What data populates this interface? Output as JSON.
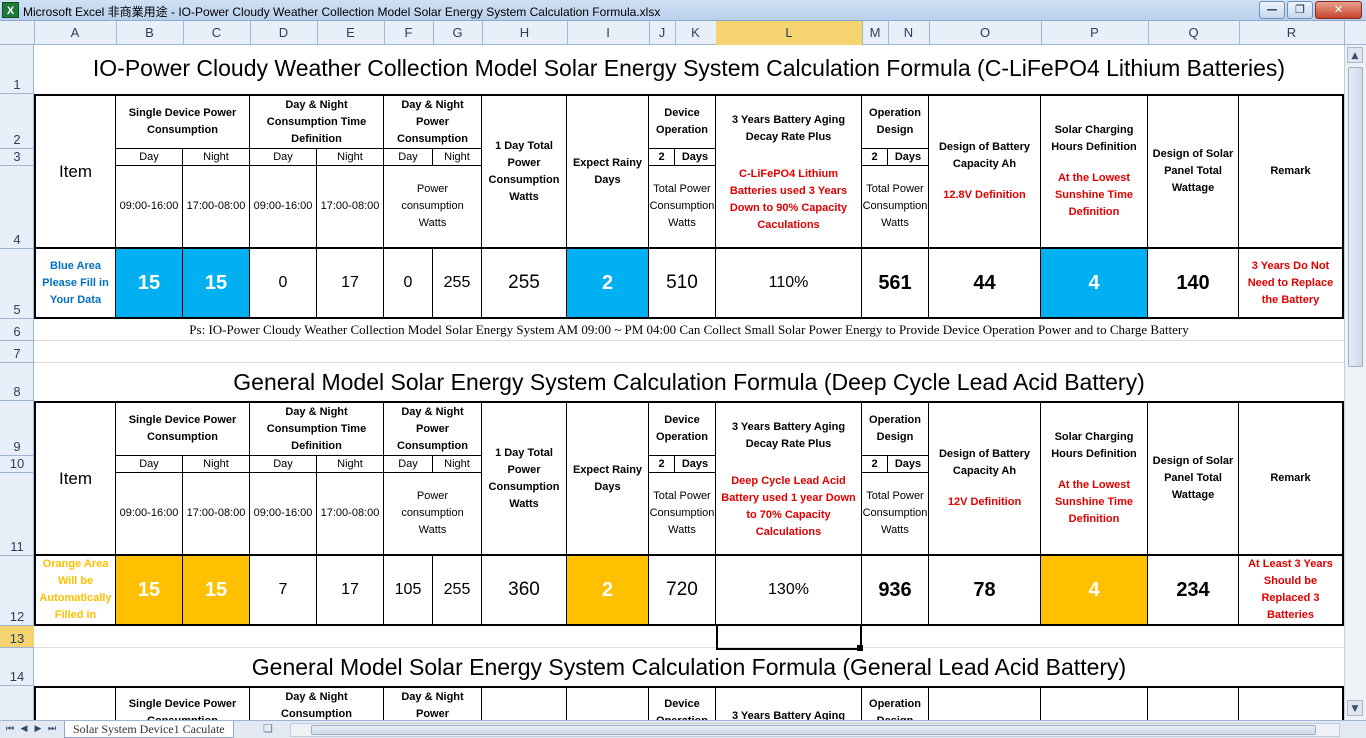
{
  "window": {
    "title": "Microsoft Excel 非商業用途 - IO-Power Cloudy Weather Collection Model Solar Energy System Calculation Formula.xlsx",
    "app_icon": "X",
    "controls": {
      "minimize": "—",
      "restore": "❐",
      "close": "✕"
    }
  },
  "columns": [
    "A",
    "B",
    "C",
    "D",
    "E",
    "F",
    "G",
    "H",
    "I",
    "J",
    "K",
    "L",
    "M",
    "N",
    "O",
    "P",
    "Q",
    "R"
  ],
  "selected_column": "L",
  "rows": [
    "1",
    "2",
    "3",
    "4",
    "5",
    "6",
    "7",
    "8",
    "9",
    "10",
    "11",
    "12",
    "13",
    "14"
  ],
  "selected_row": "13",
  "sections": {
    "lithium": {
      "title": "IO-Power Cloudy Weather Collection Model Solar Energy System Calculation Formula (C-LiFePO4 Lithium Batteries)",
      "battery_heading": "3 Years Battery Aging Decay Rate Plus",
      "battery_note": "C-LiFePO4 Lithium Batteries used 3 Years Down to 90% Capacity Caculations",
      "capacity_note": "12.8V Definition",
      "fill_note": "Blue Area Please Fill in Your Data",
      "remark": "3 Years Do Not Need to Replace the Battery",
      "values": {
        "day_power": "15",
        "night_power": "15",
        "day_hours": "0",
        "night_hours": "17",
        "day_consumption": "0",
        "night_consumption": "255",
        "total_consumption": "255",
        "rainy_days": "2",
        "device_operation": "510",
        "decay_rate": "110%",
        "operation_design": "561",
        "battery_capacity": "44",
        "charging_hours": "4",
        "panel_wattage": "140"
      },
      "footnote": "Ps: IO-Power Cloudy Weather Collection Model Solar Energy System AM 09:00 ~ PM 04:00 Can Collect Small Solar Power Energy to Provide Device Operation Power and to Charge Battery"
    },
    "deep_cycle": {
      "title": "General Model Solar Energy System Calculation Formula (Deep Cycle Lead Acid Battery)",
      "battery_heading": "3 Years Battery Aging Decay Rate Plus",
      "battery_note": "Deep Cycle Lead Acid Battery used 1 year Down to 70% Capacity Calculations",
      "capacity_note": "12V Definition",
      "fill_note": "Orange Area Will be Automatically Filled in",
      "remark": "At Least 3 Years Should be Replaced 3 Batteries",
      "values": {
        "day_power": "15",
        "night_power": "15",
        "day_hours": "7",
        "night_hours": "17",
        "day_consumption": "105",
        "night_consumption": "255",
        "total_consumption": "360",
        "rainy_days": "2",
        "device_operation": "720",
        "decay_rate": "130%",
        "operation_design": "936",
        "battery_capacity": "78",
        "charging_hours": "4",
        "panel_wattage": "234"
      }
    },
    "general": {
      "title": "General Model Solar Energy System Calculation Formula (General Lead Acid Battery)",
      "battery_heading": "3 Years Battery Aging"
    }
  },
  "headers": {
    "item": "Item",
    "single_device": "Single Device Power Consumption",
    "day_night_time": "Day & Night Consumption Time Definition",
    "day_night_time_partial": "Day & Night Consumption",
    "day_night_power": "Day & Night Power Consumption",
    "day_night_power_partial": "Day & Night Power",
    "one_day_total": "1 Day Total Power Consumption Watts",
    "expect_rainy": "Expect Rainy Days",
    "device_operation": "Device Operation",
    "operation_design": "Operation Design",
    "battery_capacity": "Design of Battery Capacity Ah",
    "solar_charging": "Solar Charging Hours Definition",
    "solar_charging_note": "At the Lowest Sunshine Time Definition",
    "panel_wattage": "Design of Solar Panel Total Wattage",
    "remark": "Remark",
    "day": "Day",
    "night": "Night",
    "two": "2",
    "days": "Days",
    "day_range": "09:00-16:00",
    "night_range": "17:00-08:00",
    "power_consumption_watts": "Power consumption Watts",
    "total_power_watts": "Total Power Consumption Watts"
  },
  "sheet_tab": "Solar System Device1 Caculate",
  "colors": {
    "blue_fill": "#00b0f0",
    "orange_fill": "#ffc000",
    "red_text": "#e00000",
    "selection": "#f5d46f"
  }
}
